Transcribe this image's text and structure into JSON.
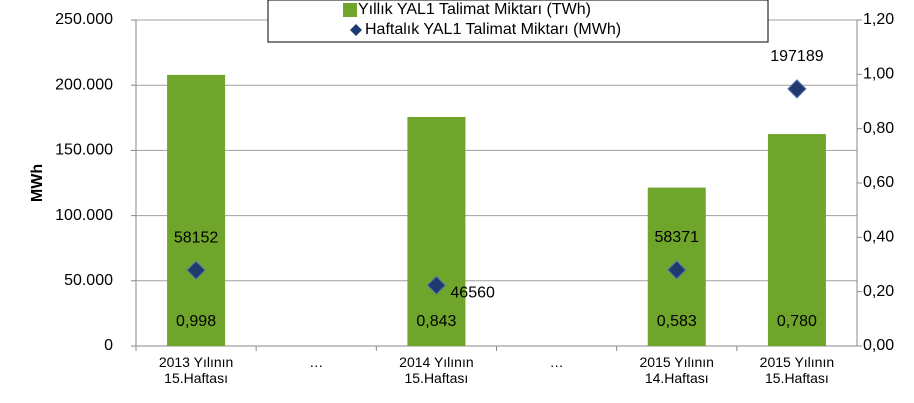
{
  "chart_data": {
    "type": "bar-scatter",
    "y_label": "MWh",
    "categories": [
      "2013 Yılının\n15.Haftası",
      "…",
      "2014 Yılının\n15.Haftası",
      "…",
      "2015 Yılının\n14.Haftası",
      "2015 Yılının\n15.Haftası"
    ],
    "series": [
      {
        "name": "Yıllık YAL1 Talimat Miktarı (TWh)",
        "type": "bar",
        "axis": "y2",
        "color": "#6ea52a",
        "values": [
          0.998,
          null,
          0.843,
          null,
          0.583,
          0.78
        ],
        "value_labels": [
          "0,998",
          null,
          "0,843",
          null,
          "0,583",
          "0,780"
        ]
      },
      {
        "name": "Haftalık YAL1 Talimat Miktarı (MWh)",
        "type": "scatter",
        "color": "#1f3a6e",
        "values": [
          58152,
          null,
          46560,
          null,
          58371,
          197189
        ]
      }
    ],
    "ylim": [
      0,
      250000
    ],
    "yticks": [
      0,
      {
        "value": 50000,
        "label": "50.000"
      },
      {
        "value": 100000,
        "label": "100.000"
      },
      {
        "value": 150000,
        "label": "150.000"
      },
      {
        "value": 200000,
        "label": "200.000"
      },
      {
        "value": 250000,
        "label": "250.000"
      }
    ],
    "y2lim": [
      0,
      1.2
    ],
    "y2ticks": [
      {
        "value": 0,
        "label": "0,00"
      },
      {
        "value": 0.2,
        "label": "0,20"
      },
      {
        "value": 0.4,
        "label": "0,40"
      },
      {
        "value": 0.6,
        "label": "0,60"
      },
      {
        "value": 0.8,
        "label": "0,80"
      },
      {
        "value": 1.0,
        "label": "1,00"
      },
      {
        "value": 1.2,
        "label": "1,20"
      }
    ],
    "grid": true,
    "legend": "top"
  }
}
